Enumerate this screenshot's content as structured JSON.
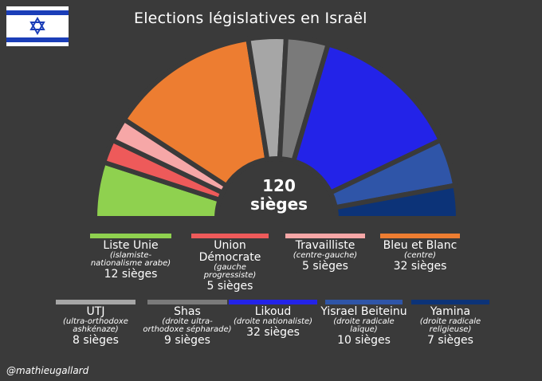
{
  "title": "Elections législatives en Israël",
  "credit": "@mathieugallard",
  "center": {
    "count": "120",
    "unit": "sièges"
  },
  "flag": {
    "icon": "israel-flag-icon",
    "blue": "#1b3eb8",
    "white": "#ffffff"
  },
  "chart_data": {
    "type": "pie",
    "subtype": "half-donut parliament",
    "total": 120,
    "series": [
      {
        "name": "Liste Unie",
        "desc": "(islamiste-nationalisme arabe)",
        "seats": 12,
        "seats_label": "12 sièges",
        "color": "#8fd14f"
      },
      {
        "name": "Union Démocrate",
        "desc": "(gauche progressiste)",
        "seats": 5,
        "seats_label": "5 sièges",
        "color": "#ee5a5a"
      },
      {
        "name": "Travailliste",
        "desc": "(centre-gauche)",
        "seats": 5,
        "seats_label": "5 sièges",
        "color": "#f6a7a7"
      },
      {
        "name": "Bleu et Blanc",
        "desc": "(centre)",
        "seats": 32,
        "seats_label": "32 sièges",
        "color": "#ed7d31"
      },
      {
        "name": "UTJ",
        "desc": "(ultra-orthodoxe ashkénaze)",
        "seats": 8,
        "seats_label": "8 sièges",
        "color": "#a6a6a6"
      },
      {
        "name": "Shas",
        "desc": "(droite ultra-orthodoxe sépharade)",
        "seats": 9,
        "seats_label": "9 sièges",
        "color": "#7a7a7a"
      },
      {
        "name": "Likoud",
        "desc": "(droite nationaliste)",
        "seats": 32,
        "seats_label": "32 sièges",
        "color": "#2323e8"
      },
      {
        "name": "Yisrael Beiteinu",
        "desc": "(droite radicale laïque)",
        "seats": 10,
        "seats_label": "10 sièges",
        "color": "#2f55a8"
      },
      {
        "name": "Yamina",
        "desc": "(droite radicale religieuse)",
        "seats": 7,
        "seats_label": "7 sièges",
        "color": "#0c3378"
      }
    ]
  }
}
